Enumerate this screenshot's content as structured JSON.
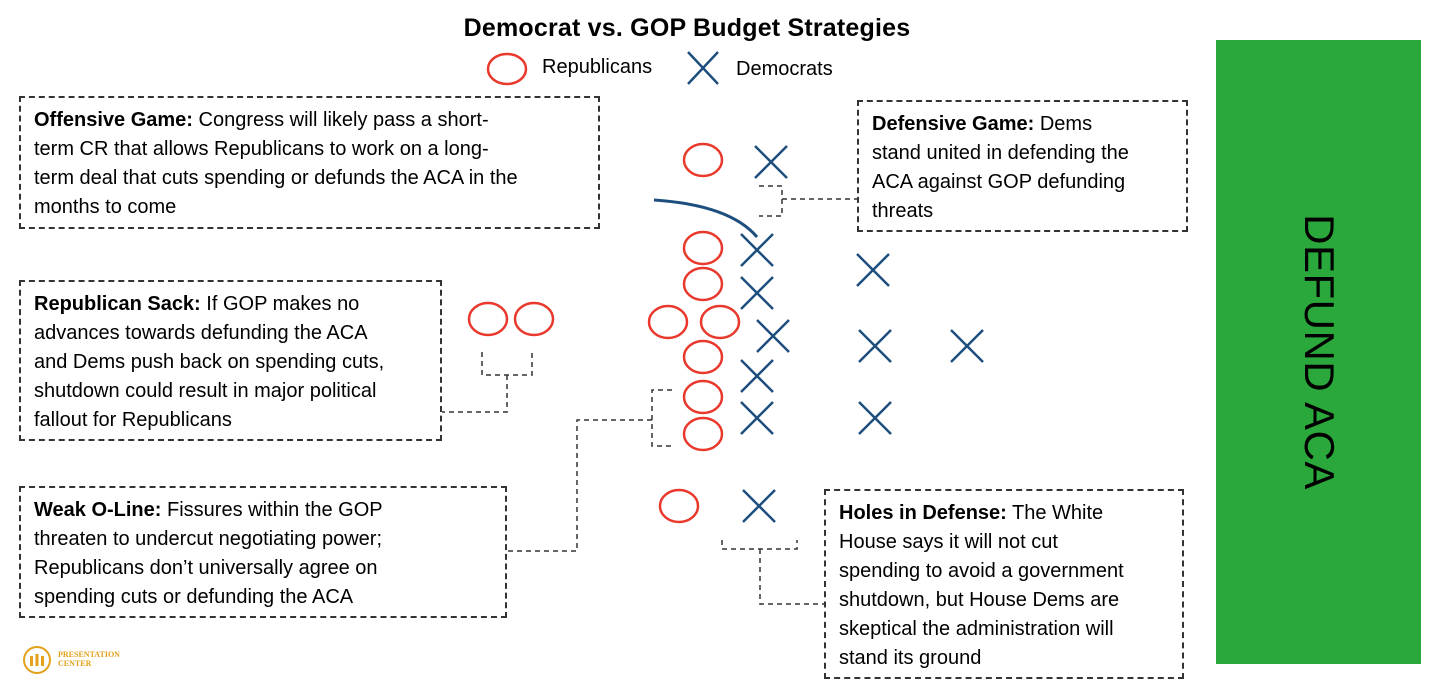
{
  "title": "Democrat vs. GOP Budget Strategies",
  "legend": {
    "republicans": "Republicans",
    "democrats": "Democrats"
  },
  "colors": {
    "republican": "#e8392c",
    "democrat": "#1d4e7e",
    "endzone": "#2aa83b",
    "logo": "#e3a21a"
  },
  "boxes": {
    "offensive": {
      "heading": "Offensive Game:",
      "lines": [
        "Congress will likely pass a short-",
        "term CR that allows Republicans to work on a long-",
        "term deal that cuts spending or defunds the ACA in the",
        "months to come"
      ]
    },
    "defensive": {
      "heading": "Defensive Game:",
      "lines": [
        "Dems",
        "stand united in defending the",
        "ACA against GOP defunding",
        "threats"
      ]
    },
    "sack": {
      "heading": "Republican Sack:",
      "lines": [
        "If GOP makes no",
        "advances towards defunding the ACA",
        "and Dems push back on spending cuts,",
        "shutdown could result in major political",
        "fallout for Republicans"
      ]
    },
    "oline": {
      "heading": "Weak O-Line:",
      "lines": [
        "Fissures within the GOP",
        "threaten to undercut negotiating power;",
        "Republicans don’t universally agree on",
        "spending cuts or defunding the ACA"
      ]
    },
    "holes": {
      "heading": "Holes in Defense:",
      "lines": [
        "The White",
        "House says it will not cut",
        "spending to avoid a government",
        "shutdown, but House Dems are",
        "skeptical  the administration will",
        "stand its ground"
      ]
    }
  },
  "endzone_label": "DEFUND ACA",
  "logo": {
    "line1": "PRESENTATION",
    "line2": "CENTER"
  }
}
